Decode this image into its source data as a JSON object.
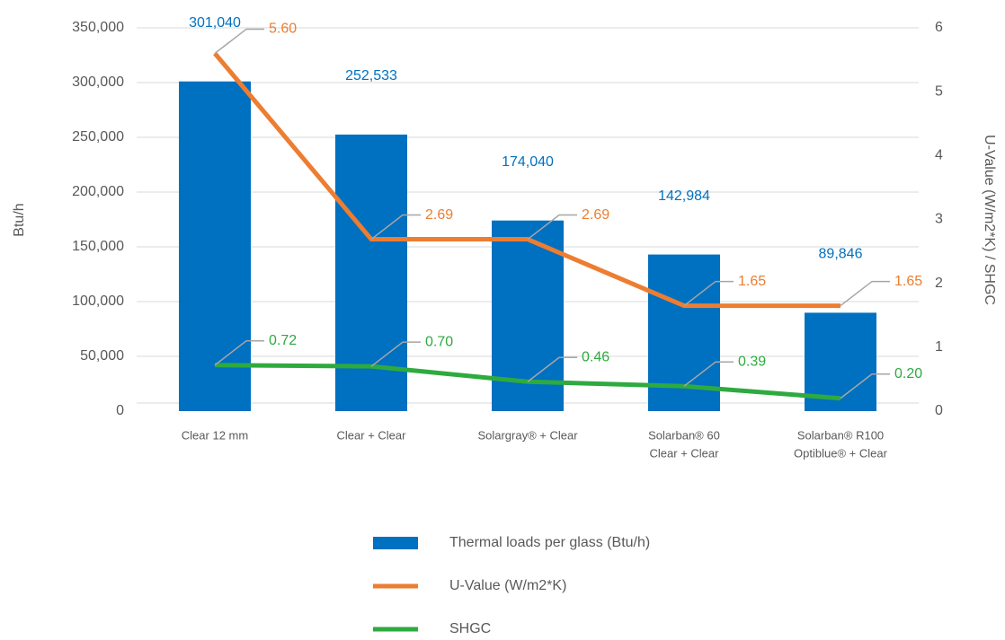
{
  "chart_data": {
    "type": "bar_line",
    "y_label": "Btu/h",
    "y2_label": "U-Value (W/m2*K)  / SHGC",
    "categories": [
      [
        "Clear 12 mm"
      ],
      [
        "Clear + Clear"
      ],
      [
        "Solargray® + Clear"
      ],
      [
        "Solarban® 60",
        "Clear + Clear"
      ],
      [
        "Solarban® R100",
        "Optiblue® + Clear"
      ]
    ],
    "ylim": [
      0,
      350000
    ],
    "yticks": [
      0,
      {
        "value": 50000,
        "label": "50,000"
      },
      {
        "value": 100000,
        "label": "100,000"
      },
      {
        "value": 150000,
        "label": "150,000"
      },
      {
        "value": 200000,
        "label": "200,000"
      },
      {
        "value": 250000,
        "label": "250,000"
      },
      {
        "value": 300000,
        "label": "300,000"
      },
      {
        "value": 350000,
        "label": "350,000"
      }
    ],
    "y2lim": [
      0,
      6
    ],
    "y2ticks": [
      0,
      1,
      2,
      3,
      4,
      5,
      6
    ],
    "grid": true,
    "series": [
      {
        "name": "Thermal loads per glass (Btu/h)",
        "type": "bar",
        "color": "#0070c0",
        "values": [
          301040,
          252533,
          174040,
          142984,
          89846
        ],
        "value_labels": [
          "301,040",
          "252,533",
          "174,040",
          "142,984",
          "89,846"
        ]
      },
      {
        "name": "U-Value (W/m2*K)",
        "type": "line",
        "axis": "y2",
        "color": "#ed7d31",
        "values": [
          5.6,
          2.69,
          2.69,
          1.65,
          1.65
        ],
        "value_labels": [
          "5.60",
          "2.69",
          "2.69",
          "1.65",
          "1.65"
        ]
      },
      {
        "name": "SHGC",
        "type": "line",
        "axis": "y2",
        "color": "#2eaa3f",
        "values": [
          0.72,
          0.7,
          0.46,
          0.39,
          0.2
        ],
        "value_labels": [
          "0.72",
          "0.70",
          "0.46",
          "0.39",
          "0.20"
        ]
      }
    ]
  }
}
